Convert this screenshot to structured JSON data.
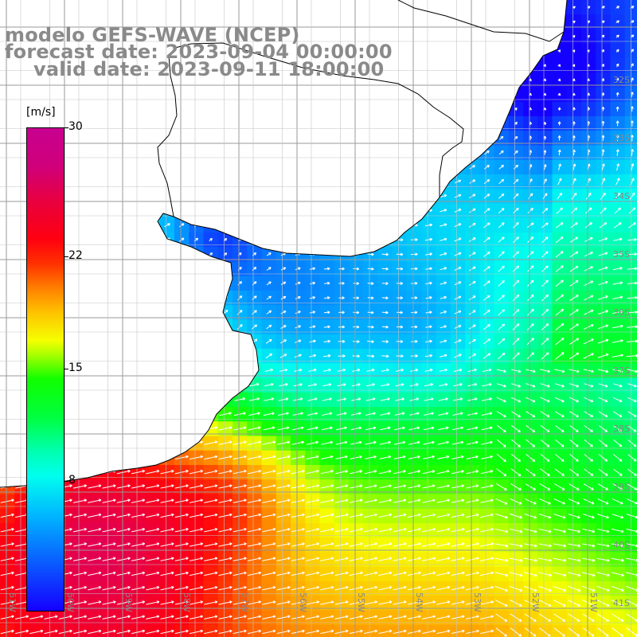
{
  "title": {
    "line1": "modelo GEFS-WAVE (NCEP)",
    "line2": "forecast date: 2023-09-04 00:00:00",
    "line3": "valid date: 2023-09-11 18:00:00"
  },
  "colorbar": {
    "unit": "[m/s]",
    "ticks": [
      "8",
      "15",
      "22",
      "30"
    ],
    "tick_values": [
      8,
      15,
      22,
      30
    ],
    "range": [
      0,
      30
    ]
  },
  "axes": {
    "lat_labels": [
      "32S",
      "33S",
      "34S",
      "35S",
      "36S",
      "37S",
      "38S",
      "39S",
      "40S",
      "41S"
    ],
    "lon_labels": [
      "61W",
      "60W",
      "59W",
      "58W",
      "57W",
      "56W",
      "55W",
      "54W",
      "53W",
      "52W",
      "51W"
    ]
  },
  "colors": {
    "land": "#ffffff",
    "grid": "#9a9a9a",
    "coast": "#000000",
    "arrows": "#ffffff",
    "title_text": "#8a8a8a"
  }
}
